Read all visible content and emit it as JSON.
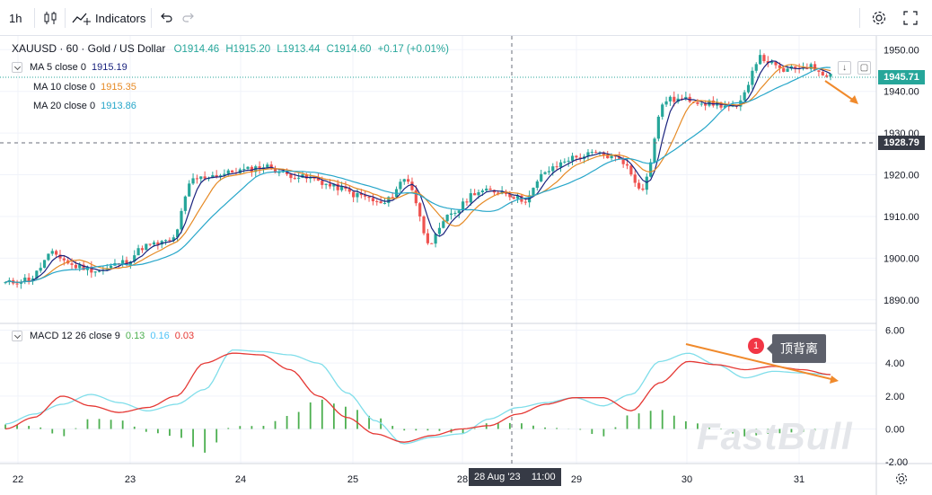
{
  "toolbar": {
    "interval": "1h",
    "indicators_label": "Indicators",
    "icons": [
      "candles-icon",
      "indicators-icon",
      "undo-icon",
      "redo-icon",
      "settings-icon",
      "fullscreen-icon"
    ]
  },
  "symbol": {
    "name": "XAUUSD · 60 · Gold / US Dollar",
    "open": "O1914.46",
    "high": "H1915.20",
    "low": "L1913.44",
    "close": "C1914.60",
    "change": "+0.17 (+0.01%)"
  },
  "ma_legend": [
    {
      "label": "MA 5 close 0",
      "value": "1915.19",
      "color": "#1a237e"
    },
    {
      "label": "MA 10 close 0",
      "value": "1915.35",
      "color": "#e68a25"
    },
    {
      "label": "MA 20 close 0",
      "value": "1913.86",
      "color": "#26a6c9"
    }
  ],
  "macd_legend": {
    "label": "MACD 12 26 close 9",
    "hist": "0.13",
    "macd": "0.16",
    "signal": "0.03"
  },
  "price_tags": {
    "last": "1945.71",
    "crosshair": "1928.79"
  },
  "annotation": {
    "number": "1",
    "text": "顶背离"
  },
  "watermark": "FastBull",
  "crosshair_time": "28 Aug '23    11:00",
  "colors": {
    "up": "#26a69a",
    "down": "#ef5350",
    "macd": "#80deea",
    "signal": "#e53935",
    "hist": "#4caf50",
    "arrow": "#f08a2c"
  },
  "chart_data": {
    "type": "candlestick",
    "x_ticks": [
      "22",
      "23",
      "24",
      "25",
      "28",
      "29",
      "30",
      "31"
    ],
    "price_ticks": [
      1890,
      1900,
      1910,
      1920,
      1930,
      1940,
      1950
    ],
    "macd_ticks": [
      "-2.00",
      "0.00",
      "2.00",
      "4.00",
      "6.00"
    ],
    "ylim": [
      1885,
      1952
    ],
    "macd_ylim": [
      -2.1,
      6.3
    ],
    "price_anchors": [
      1894,
      1895,
      1901,
      1898,
      1897,
      1899,
      1903,
      1904,
      1919,
      1920,
      1921,
      1922,
      1920,
      1919,
      1917,
      1915,
      1913,
      1919,
      1904,
      1911,
      1916,
      1916,
      1914,
      1921,
      1924,
      1925,
      1924,
      1917,
      1938,
      1938,
      1937,
      1936,
      1948,
      1945,
      1946,
      1944
    ],
    "macd_anchors": [
      0.3,
      0.9,
      1.5,
      2.1,
      1.6,
      1.1,
      1.5,
      2.4,
      4.8,
      4.7,
      4.5,
      4.0,
      2.2,
      0.5,
      -0.9,
      -0.5,
      -0.3,
      0.6,
      1.3,
      1.6,
      1.9,
      1.4,
      2.1,
      4.1,
      4.6,
      3.9,
      3.1,
      3.5,
      3.4,
      3.3
    ],
    "signal_anchors": [
      0.0,
      0.7,
      2.0,
      1.4,
      1.0,
      1.3,
      2.0,
      4.0,
      4.6,
      4.5,
      3.6,
      2.0,
      0.7,
      -0.3,
      -0.8,
      -0.4,
      0.0,
      0.2,
      0.9,
      1.5,
      1.9,
      1.9,
      1.1,
      2.8,
      4.1,
      3.9,
      3.6,
      3.8,
      3.6,
      3.3
    ],
    "series": [
      {
        "name": "MA 5 close 0",
        "color": "#1a237e"
      },
      {
        "name": "MA 10 close 0",
        "color": "#e68a25"
      },
      {
        "name": "MA 20 close 0",
        "color": "#26a6c9"
      }
    ]
  }
}
